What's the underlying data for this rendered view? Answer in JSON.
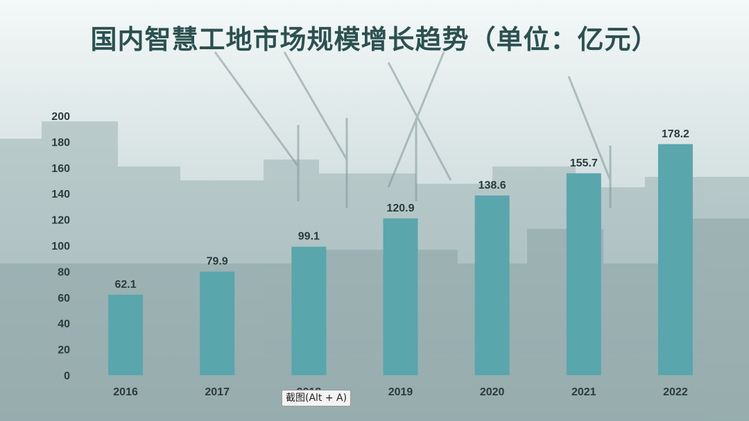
{
  "page": {
    "title": "国内智慧工地市场规模增长趋势（单位：亿元）",
    "tooltip_text": "截图(Alt + A)"
  },
  "colors": {
    "title": "#2b5150",
    "bar": "#5aa6ad",
    "labels": "#2d3a3c"
  },
  "chart_data": {
    "type": "bar",
    "title": "国内智慧工地市场规模增长趋势（单位：亿元）",
    "xlabel": "",
    "ylabel": "",
    "categories": [
      "2016",
      "2017",
      "2018",
      "2019",
      "2020",
      "2021",
      "2022"
    ],
    "values": [
      62.1,
      79.9,
      99.1,
      120.9,
      138.6,
      155.7,
      178.2
    ],
    "data_labels": [
      "62.1",
      "79.9",
      "99.1",
      "120.9",
      "138.6",
      "155.7",
      "178.2"
    ],
    "ylim": [
      0,
      200
    ],
    "yticks": [
      0,
      20,
      40,
      60,
      80,
      100,
      120,
      140,
      160,
      180,
      200
    ],
    "grid": false,
    "legend": "none"
  }
}
